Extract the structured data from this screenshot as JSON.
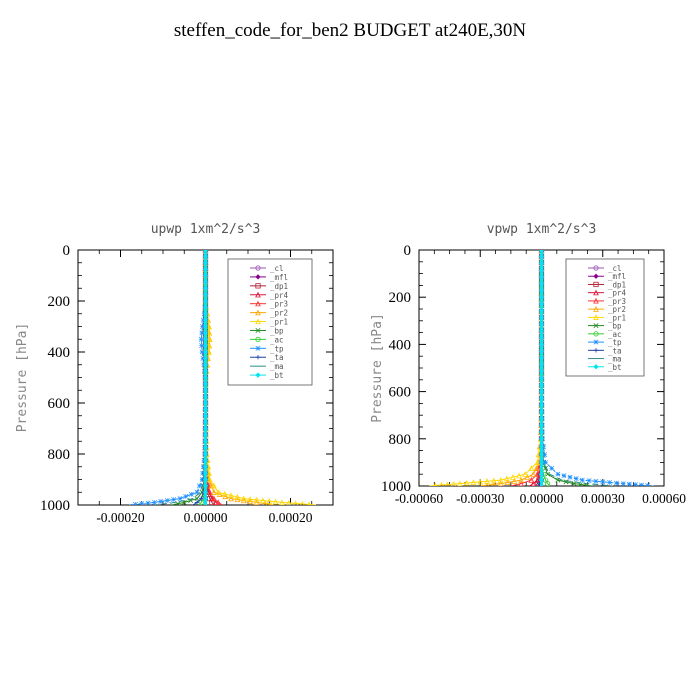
{
  "figure": {
    "title": "steffen_code_for_ben2  BUDGET at240E,30N"
  },
  "legend_entries": [
    "_cl",
    "_mfl",
    "_dp1",
    "_pr4",
    "_pr3",
    "_pr2",
    "_pr1",
    "_bp",
    "_ac",
    "_tp",
    "_ta",
    "_ma",
    "_bt"
  ],
  "colors": {
    "_cl": "#9b59b6",
    "_mfl": "#8b008b",
    "_dp1": "#b22234",
    "_pr4": "#dc143c",
    "_pr3": "#ff3030",
    "_pr2": "#ffa500",
    "_pr1": "#ffd700",
    "_bp": "#228b22",
    "_ac": "#32cd32",
    "_tp": "#1e90ff",
    "_ta": "#1c3faa",
    "_ma": "#2e8b8b",
    "_bt": "#00e5ee"
  },
  "chart_data": [
    {
      "type": "line",
      "title": "upwp   1xm^2/s^3",
      "xlabel": "",
      "ylabel": "Pressure [hPa]",
      "xlim": [
        -0.0003,
        0.0003
      ],
      "ylim": [
        1000,
        0
      ],
      "x_ticks": [
        -0.0002,
        0.0,
        0.0002
      ],
      "x_tick_labels": [
        "-0.00020",
        "0.00000",
        "0.00020"
      ],
      "y_ticks": [
        0,
        200,
        400,
        600,
        800,
        1000
      ],
      "legend_position": "top-right",
      "series": [
        {
          "name": "_cl",
          "y": [
            0,
            200,
            400,
            600,
            800,
            900,
            950,
            975,
            1000
          ],
          "x": [
            0,
            0,
            0,
            0,
            0,
            0,
            0,
            0,
            0
          ]
        },
        {
          "name": "_mfl",
          "y": [
            0,
            200,
            400,
            600,
            800,
            900,
            950,
            975,
            1000
          ],
          "x": [
            0,
            0,
            0,
            0,
            0,
            0,
            0,
            0,
            0
          ]
        },
        {
          "name": "_dp1",
          "y": [
            0,
            500,
            800,
            900,
            950,
            975,
            990,
            1000
          ],
          "x": [
            0,
            0,
            0,
            2e-06,
            5e-06,
            1e-05,
            1.5e-05,
            2e-05
          ]
        },
        {
          "name": "_pr4",
          "y": [
            0,
            500,
            800,
            900,
            950,
            975,
            990,
            1000
          ],
          "x": [
            0,
            0,
            1e-06,
            3e-06,
            8e-06,
            1.5e-05,
            2.5e-05,
            3.5e-05
          ]
        },
        {
          "name": "_pr3",
          "y": [
            0,
            500,
            800,
            900,
            950,
            975,
            990,
            1000
          ],
          "x": [
            0,
            0,
            1e-06,
            4e-06,
            1e-05,
            2e-05,
            3e-05,
            4e-05
          ]
        },
        {
          "name": "_pr2",
          "y": [
            0,
            200,
            250,
            300,
            350,
            400,
            450,
            500,
            600,
            800,
            900,
            950,
            975,
            990,
            1000
          ],
          "x": [
            0,
            0,
            4e-06,
            8e-06,
            1e-05,
            8e-06,
            4e-06,
            1e-06,
            0,
            2e-06,
            8e-06,
            2e-05,
            6e-05,
            0.00012,
            0.00016
          ]
        },
        {
          "name": "_pr1",
          "y": [
            0,
            200,
            250,
            300,
            350,
            400,
            450,
            500,
            600,
            800,
            900,
            950,
            975,
            990,
            1000
          ],
          "x": [
            0,
            0,
            3e-06,
            7e-06,
            9e-06,
            7e-06,
            3e-06,
            1e-06,
            0,
            3e-06,
            1e-05,
            3e-05,
            9e-05,
            0.00018,
            0.00026
          ]
        },
        {
          "name": "_bp",
          "y": [
            0,
            600,
            800,
            900,
            950,
            975,
            990,
            1000
          ],
          "x": [
            0,
            0,
            -1e-06,
            -3e-06,
            -8e-06,
            -2e-05,
            -5e-05,
            -8e-05
          ]
        },
        {
          "name": "_ac",
          "y": [
            0,
            600,
            800,
            900,
            950,
            975,
            990,
            1000
          ],
          "x": [
            0,
            0,
            0,
            -1e-06,
            -3e-06,
            -6e-06,
            -1e-05,
            -1.5e-05
          ]
        },
        {
          "name": "_tp",
          "y": [
            0,
            200,
            250,
            300,
            350,
            400,
            450,
            500,
            600,
            800,
            900,
            950,
            975,
            990,
            1000
          ],
          "x": [
            0,
            0,
            -3e-06,
            -7e-06,
            -1e-05,
            -8e-06,
            -4e-06,
            -1e-06,
            0,
            -2e-06,
            -8e-06,
            -2e-05,
            -6e-05,
            -0.00012,
            -0.00018
          ]
        },
        {
          "name": "_ta",
          "y": [
            0,
            600,
            800,
            900,
            950,
            975,
            990,
            1000
          ],
          "x": [
            0,
            0,
            -1e-06,
            -2e-06,
            -5e-06,
            -1e-05,
            -2e-05,
            -3e-05
          ]
        },
        {
          "name": "_ma",
          "y": [
            0,
            600,
            800,
            900,
            950,
            975,
            990,
            1000
          ],
          "x": [
            0,
            0,
            -2e-06,
            -5e-06,
            -1.2e-05,
            -3e-05,
            -7e-05,
            -0.00012
          ]
        },
        {
          "name": "_bt",
          "y": [
            0,
            200,
            400,
            600,
            800,
            900,
            950,
            975,
            1000
          ],
          "x": [
            0,
            0,
            0,
            0,
            0,
            0,
            0,
            0,
            0
          ]
        }
      ]
    },
    {
      "type": "line",
      "title": "vpwp   1xm^2/s^3",
      "xlabel": "",
      "ylabel": "Pressure [hPa]",
      "xlim": [
        -0.0006,
        0.0006
      ],
      "ylim": [
        1000,
        0
      ],
      "x_ticks": [
        -0.0006,
        -0.0003,
        0.0,
        0.0003,
        0.0006
      ],
      "x_tick_labels": [
        "-0.00060",
        "-0.00030",
        "0.00000",
        "0.00030",
        "0.00060"
      ],
      "y_ticks": [
        0,
        200,
        400,
        600,
        800,
        1000
      ],
      "legend_position": "top-right",
      "series": [
        {
          "name": "_cl",
          "y": [
            0,
            200,
            400,
            600,
            800,
            900,
            950,
            975,
            1000
          ],
          "x": [
            0,
            0,
            0,
            0,
            0,
            0,
            0,
            0,
            0
          ]
        },
        {
          "name": "_mfl",
          "y": [
            0,
            200,
            400,
            600,
            800,
            900,
            950,
            975,
            1000
          ],
          "x": [
            0,
            0,
            0,
            0,
            0,
            0,
            0,
            0,
            0
          ]
        },
        {
          "name": "_dp1",
          "y": [
            0,
            600,
            800,
            900,
            950,
            975,
            990,
            1000
          ],
          "x": [
            0,
            0,
            0,
            -2e-06,
            -6e-06,
            -1.2e-05,
            -2e-05,
            -3e-05
          ]
        },
        {
          "name": "_pr4",
          "y": [
            0,
            600,
            800,
            900,
            950,
            975,
            990,
            1000
          ],
          "x": [
            0,
            0,
            -2e-06,
            -5e-06,
            -1e-05,
            -2e-05,
            -4e-05,
            -6e-05
          ]
        },
        {
          "name": "_pr3",
          "y": [
            0,
            600,
            800,
            900,
            950,
            975,
            990,
            1000
          ],
          "x": [
            0,
            0,
            -3e-06,
            -8e-06,
            -2e-05,
            -5e-05,
            -0.0001,
            -0.00015
          ]
        },
        {
          "name": "_pr2",
          "y": [
            0,
            600,
            800,
            900,
            950,
            975,
            990,
            1000
          ],
          "x": [
            0,
            0,
            -3e-06,
            -1e-05,
            -4e-05,
            -0.0001,
            -0.0002,
            -0.0003
          ]
        },
        {
          "name": "_pr1",
          "y": [
            0,
            600,
            800,
            900,
            950,
            975,
            990,
            1000
          ],
          "x": [
            0,
            0,
            -5e-06,
            -2e-05,
            -8e-05,
            -0.0002,
            -0.0004,
            -0.00055
          ]
        },
        {
          "name": "_bp",
          "y": [
            0,
            600,
            800,
            900,
            950,
            975,
            990,
            1000
          ],
          "x": [
            0,
            0,
            2e-06,
            8e-06,
            3e-05,
            8e-05,
            0.00016,
            0.00025
          ]
        },
        {
          "name": "_ac",
          "y": [
            0,
            600,
            800,
            900,
            950,
            975,
            990,
            1000
          ],
          "x": [
            0,
            0,
            1e-06,
            3e-06,
            8e-06,
            2e-05,
            3e-05,
            4e-05
          ]
        },
        {
          "name": "_tp",
          "y": [
            0,
            600,
            800,
            900,
            950,
            975,
            990,
            1000
          ],
          "x": [
            0,
            0,
            5e-06,
            2e-05,
            8e-05,
            0.0002,
            0.0004,
            0.00055
          ]
        },
        {
          "name": "_ta",
          "y": [
            0,
            600,
            800,
            900,
            950,
            975,
            990,
            1000
          ],
          "x": [
            0,
            0,
            0,
            -1e-06,
            -3e-06,
            -6e-06,
            -1e-05,
            -2e-05
          ]
        },
        {
          "name": "_ma",
          "y": [
            0,
            600,
            800,
            900,
            950,
            975,
            990,
            1000
          ],
          "x": [
            0,
            0,
            3e-06,
            1e-05,
            4e-05,
            0.0001,
            0.00022,
            0.00035
          ]
        },
        {
          "name": "_bt",
          "y": [
            0,
            200,
            400,
            600,
            800,
            900,
            950,
            975,
            1000
          ],
          "x": [
            0,
            0,
            0,
            0,
            0,
            0,
            0,
            0,
            0
          ]
        }
      ]
    }
  ]
}
